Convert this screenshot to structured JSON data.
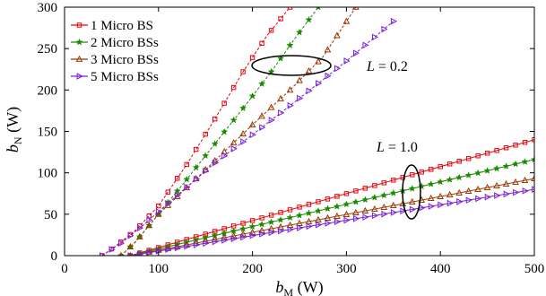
{
  "chart_data": {
    "type": "line",
    "xlabel_main": "b",
    "xlabel_sub": "M",
    "xlabel_unit": " (W)",
    "ylabel_main": "b",
    "ylabel_sub": "N",
    "ylabel_unit": " (W)",
    "xlim": [
      0,
      500
    ],
    "ylim": [
      0,
      300
    ],
    "xticks": [
      0,
      100,
      200,
      300,
      400,
      500
    ],
    "yticks": [
      0,
      50,
      100,
      150,
      200,
      250,
      300
    ],
    "grid": false,
    "legend_position": "top-left",
    "annotations": [
      {
        "text_main": "L",
        "text_rest": " = 0.2"
      },
      {
        "text_main": "L",
        "text_rest": " = 1.0"
      }
    ],
    "series": [
      {
        "name": "1 Micro BS",
        "color": "#e8000b",
        "marker": "square",
        "L": "1.0",
        "x": [
          70,
          500
        ],
        "y": [
          0,
          140
        ]
      },
      {
        "name": "2 Micro BSs",
        "color": "#1a8a00",
        "marker": "star",
        "L": "1.0",
        "x": [
          70,
          500
        ],
        "y": [
          0,
          116
        ]
      },
      {
        "name": "3 Micro BSs",
        "color": "#9a3a00",
        "marker": "triangle-up",
        "L": "1.0",
        "x": [
          70,
          500
        ],
        "y": [
          0,
          93
        ]
      },
      {
        "name": "5 Micro BSs",
        "color": "#7a20d8",
        "marker": "triangle-right",
        "L": "1.0",
        "x": [
          70,
          500
        ],
        "y": [
          0,
          80
        ]
      },
      {
        "name": "1 Micro BS",
        "color": "#e8000b",
        "marker": "square",
        "L": "0.2",
        "x": [
          40,
          55,
          75,
          100,
          130,
          160,
          190,
          215,
          240
        ],
        "y": [
          0,
          12,
          30,
          60,
          110,
          165,
          222,
          265,
          300
        ]
      },
      {
        "name": "2 Micro BSs",
        "color": "#1a8a00",
        "marker": "star",
        "L": "0.2",
        "x": [
          60,
          75,
          100,
          130,
          160,
          190,
          220,
          245,
          270
        ],
        "y": [
          0,
          16,
          50,
          92,
          135,
          178,
          222,
          262,
          300
        ]
      },
      {
        "name": "3 Micro BSs",
        "color": "#9a3a00",
        "marker": "triangle-up",
        "L": "0.2",
        "x": [
          60,
          75,
          100,
          130,
          165,
          200,
          240,
          275,
          310
        ],
        "y": [
          0,
          16,
          50,
          82,
          120,
          158,
          200,
          240,
          300
        ]
      },
      {
        "name": "5 Micro BSs",
        "color": "#7a20d8",
        "marker": "triangle-right",
        "L": "0.2",
        "x": [
          40,
          60,
          85,
          120,
          160,
          200,
          250,
          300,
          350
        ],
        "y": [
          0,
          15,
          38,
          73,
          112,
          146,
          190,
          235,
          283
        ]
      }
    ]
  }
}
